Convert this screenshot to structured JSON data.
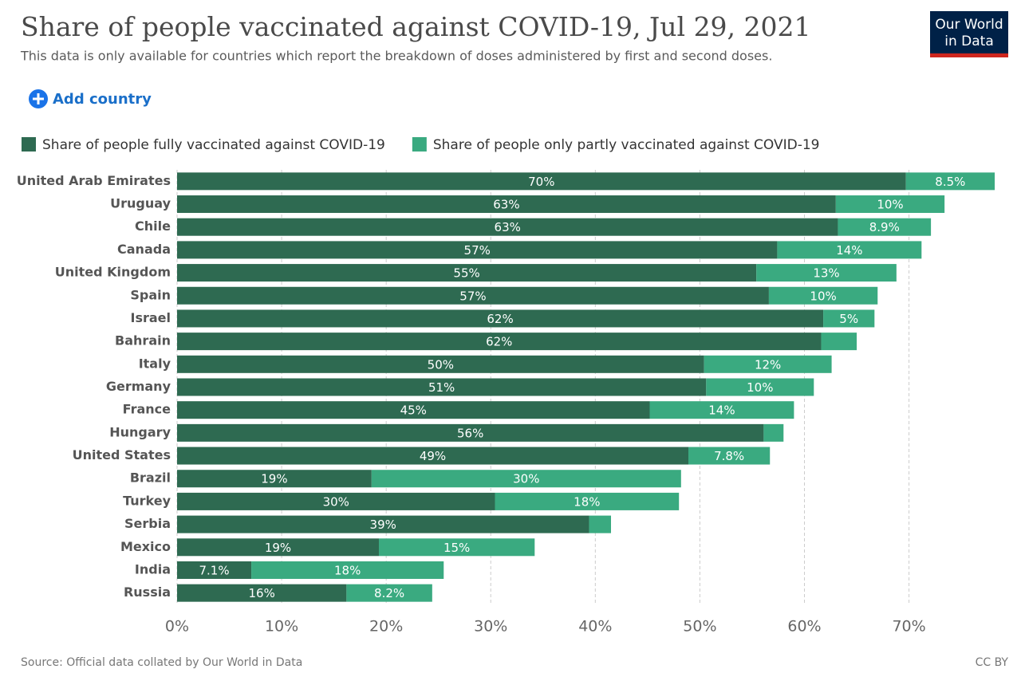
{
  "chart_data": {
    "type": "stacked-bar-horizontal",
    "title": "Share of people vaccinated against COVID-19, Jul 29, 2021",
    "subtitle": "This data is only available for countries which report the breakdown of doses administered by first and second doses.",
    "add_button": "Add country",
    "logo": [
      "Our World",
      "in Data"
    ],
    "source": "Source: Official data collated by Our World in Data",
    "license": "CC BY",
    "categories": [
      "United Arab Emirates",
      "Uruguay",
      "Chile",
      "Canada",
      "United Kingdom",
      "Spain",
      "Israel",
      "Bahrain",
      "Italy",
      "Germany",
      "France",
      "Hungary",
      "United States",
      "Brazil",
      "Turkey",
      "Serbia",
      "Mexico",
      "India",
      "Russia"
    ],
    "series": [
      {
        "name": "Share of people fully vaccinated against COVID-19",
        "color": "#2e6a51",
        "values": [
          69.7,
          63.0,
          63.2,
          57.4,
          55.4,
          56.6,
          61.8,
          61.6,
          50.4,
          50.6,
          45.2,
          56.1,
          48.9,
          18.6,
          30.4,
          39.4,
          19.3,
          7.1,
          16.2
        ],
        "value_labels": [
          "70%",
          "63%",
          "63%",
          "57%",
          "55%",
          "57%",
          "62%",
          "62%",
          "50%",
          "51%",
          "45%",
          "56%",
          "49%",
          "19%",
          "30%",
          "39%",
          "19%",
          "7.1%",
          "16%"
        ]
      },
      {
        "name": "Share of people only partly vaccinated against COVID-19",
        "color": "#3aaa80",
        "values": [
          8.5,
          10.4,
          8.9,
          13.8,
          13.4,
          10.4,
          4.9,
          3.4,
          12.2,
          10.3,
          13.8,
          1.9,
          7.8,
          29.6,
          17.6,
          2.1,
          14.9,
          18.4,
          8.2
        ],
        "value_labels": [
          "8.5%",
          "10%",
          "8.9%",
          "14%",
          "13%",
          "10%",
          "5%",
          null,
          "12%",
          "10%",
          "14%",
          null,
          "7.8%",
          "30%",
          "18%",
          null,
          "15%",
          "18%",
          "8.2%"
        ]
      }
    ],
    "xlim": [
      0,
      78.5
    ],
    "xticks": [
      {
        "value": 0,
        "label": "0%"
      },
      {
        "value": 10,
        "label": "10%"
      },
      {
        "value": 20,
        "label": "20%"
      },
      {
        "value": 30,
        "label": "30%"
      },
      {
        "value": 40,
        "label": "40%"
      },
      {
        "value": 50,
        "label": "50%"
      },
      {
        "value": 60,
        "label": "60%"
      },
      {
        "value": 70,
        "label": "70%"
      }
    ],
    "grid": true
  }
}
